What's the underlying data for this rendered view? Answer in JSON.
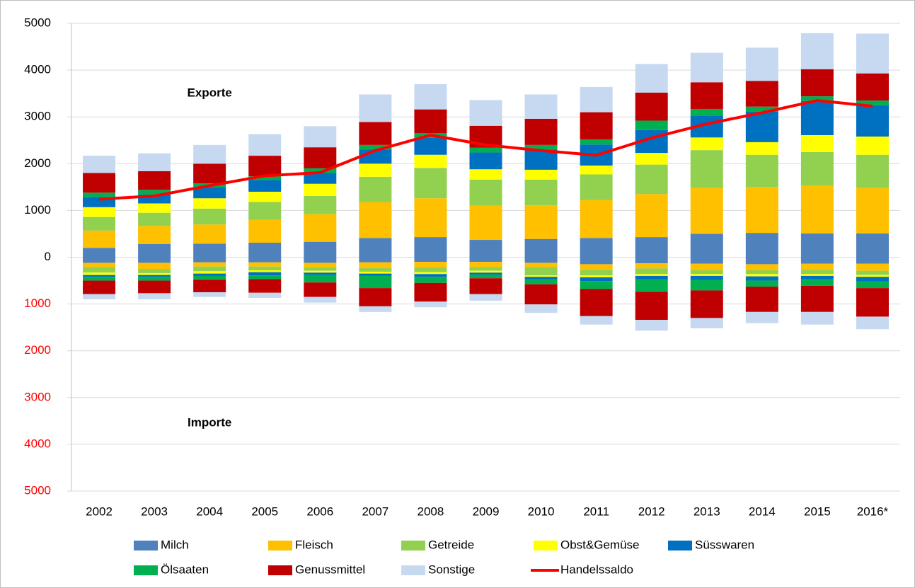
{
  "chart_data": {
    "type": "bar",
    "stacked": true,
    "categories": [
      "2002",
      "2003",
      "2004",
      "2005",
      "2006",
      "2007",
      "2008",
      "2009",
      "2010",
      "2011",
      "2012",
      "2013",
      "2014",
      "2015",
      "2016*"
    ],
    "ylim": [
      -5000,
      5000
    ],
    "yticks": [
      {
        "value": -5000,
        "label": "5000"
      },
      {
        "value": -4000,
        "label": "4000"
      },
      {
        "value": -3000,
        "label": "3000"
      },
      {
        "value": -2000,
        "label": "2000"
      },
      {
        "value": -1000,
        "label": "1000"
      },
      0,
      1000,
      2000,
      3000,
      4000,
      5000
    ],
    "grid": true,
    "annotations": [
      {
        "text": "Exporte",
        "x": "2004",
        "y": 3500
      },
      {
        "text": "Importe",
        "x": "2004",
        "y": -3550
      }
    ],
    "series": [
      {
        "name": "Milch",
        "color": "#4f81bd",
        "values": [
          200,
          280,
          290,
          310,
          330,
          410,
          430,
          370,
          390,
          410,
          430,
          500,
          520,
          510,
          510
        ],
        "imports": [
          -120,
          -120,
          -110,
          -110,
          -120,
          -110,
          -100,
          -100,
          -120,
          -150,
          -130,
          -140,
          -150,
          -140,
          -140
        ]
      },
      {
        "name": "Fleisch",
        "color": "#ffc000",
        "values": [
          370,
          390,
          410,
          490,
          590,
          770,
          830,
          730,
          720,
          810,
          920,
          980,
          980,
          1020,
          970
        ],
        "imports": [
          -90,
          -130,
          -90,
          -90,
          -100,
          -120,
          -120,
          -110,
          -90,
          -120,
          -110,
          -140,
          -130,
          -130,
          -150
        ]
      },
      {
        "name": "Getreide",
        "color": "#92d050",
        "values": [
          290,
          280,
          340,
          380,
          390,
          540,
          650,
          560,
          550,
          550,
          630,
          810,
          690,
          720,
          710
        ],
        "imports": [
          -120,
          -90,
          -100,
          -80,
          -70,
          -80,
          -100,
          -80,
          -180,
          -120,
          -120,
          -80,
          -80,
          -90,
          -90
        ]
      },
      {
        "name": "Obst&Gemüse",
        "color": "#ffff00",
        "values": [
          210,
          200,
          220,
          220,
          260,
          280,
          280,
          220,
          210,
          190,
          250,
          270,
          270,
          360,
          390
        ],
        "imports": [
          -50,
          -40,
          -50,
          -40,
          -40,
          -40,
          -40,
          -40,
          -30,
          -40,
          -40,
          -40,
          -50,
          -40,
          -40
        ]
      },
      {
        "name": "Süsswaren",
        "color": "#0070c0",
        "values": [
          220,
          190,
          230,
          250,
          230,
          300,
          370,
          360,
          430,
          450,
          490,
          470,
          660,
          730,
          670
        ],
        "imports": [
          -40,
          -40,
          -50,
          -70,
          -50,
          -50,
          -60,
          -40,
          -60,
          -80,
          -80,
          -90,
          -90,
          -80,
          -100
        ]
      },
      {
        "name": "Ölsaaten",
        "color": "#00b050",
        "values": [
          90,
          100,
          90,
          80,
          100,
          100,
          90,
          100,
          100,
          110,
          200,
          140,
          100,
          100,
          100
        ],
        "imports": [
          -80,
          -80,
          -80,
          -80,
          -160,
          -260,
          -130,
          -80,
          -100,
          -170,
          -260,
          -220,
          -130,
          -130,
          -140
        ]
      },
      {
        "name": "Genussmittel",
        "color": "#c00000",
        "values": [
          420,
          400,
          420,
          440,
          450,
          490,
          510,
          470,
          560,
          580,
          600,
          570,
          550,
          580,
          580
        ],
        "imports": [
          -290,
          -270,
          -270,
          -290,
          -310,
          -390,
          -400,
          -340,
          -430,
          -580,
          -600,
          -590,
          -540,
          -560,
          -610
        ]
      },
      {
        "name": "Sonstige",
        "color": "#c6d9f1",
        "values": [
          370,
          380,
          400,
          460,
          450,
          590,
          540,
          550,
          520,
          540,
          610,
          630,
          710,
          770,
          850
        ],
        "imports": [
          -110,
          -130,
          -100,
          -110,
          -120,
          -120,
          -120,
          -140,
          -180,
          -180,
          -230,
          -220,
          -240,
          -270,
          -270
        ]
      },
      {
        "name": "Handelssaldo",
        "type": "line",
        "color": "#ff0000",
        "values": [
          1240,
          1310,
          1530,
          1740,
          1810,
          2280,
          2610,
          2400,
          2280,
          2180,
          2550,
          2850,
          3090,
          3350,
          3230
        ]
      }
    ]
  }
}
